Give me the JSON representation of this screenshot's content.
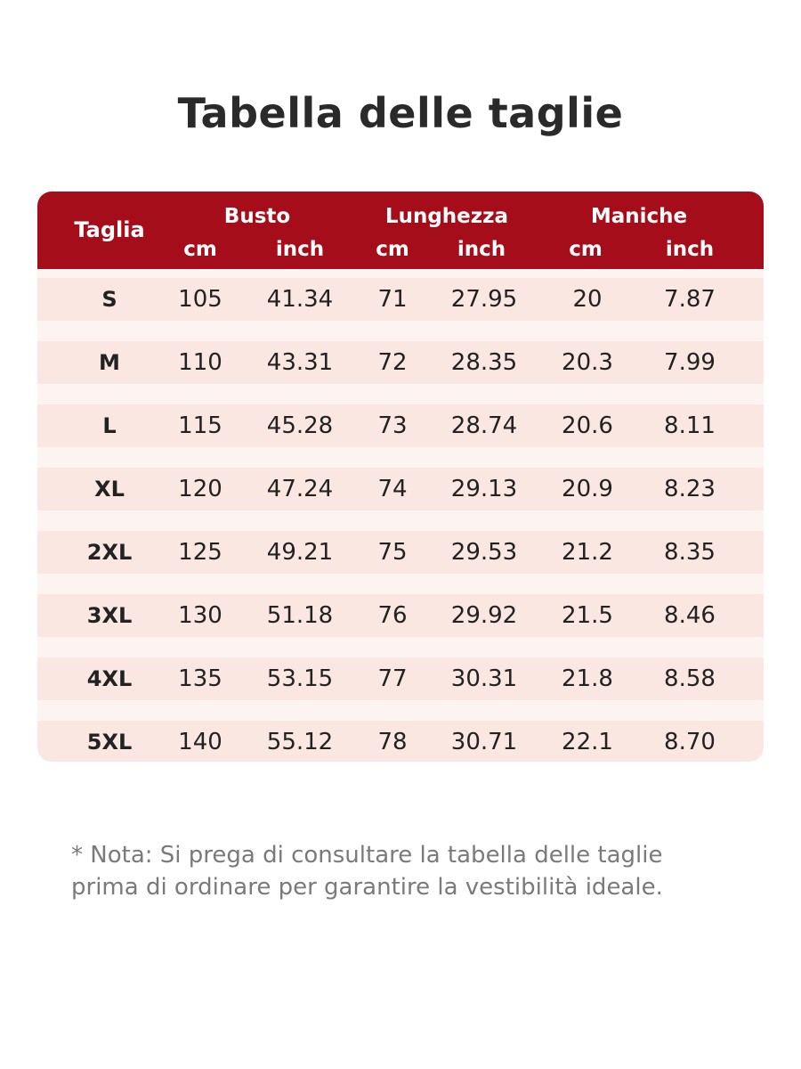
{
  "header": {
    "title": "Tabella delle taglie"
  },
  "table": {
    "size_label": "Taglia",
    "groups": [
      "Busto",
      "Lunghezza",
      "Maniche"
    ],
    "units": [
      "cm",
      "inch",
      "cm",
      "inch",
      "cm",
      "inch"
    ],
    "rows": [
      [
        "S",
        "105",
        "41.34",
        "71",
        "27.95",
        "20",
        "7.87"
      ],
      [
        "M",
        "110",
        "43.31",
        "72",
        "28.35",
        "20.3",
        "7.99"
      ],
      [
        "L",
        "115",
        "45.28",
        "73",
        "28.74",
        "20.6",
        "8.11"
      ],
      [
        "XL",
        "120",
        "47.24",
        "74",
        "29.13",
        "20.9",
        "8.23"
      ],
      [
        "2XL",
        "125",
        "49.21",
        "75",
        "29.53",
        "21.2",
        "8.35"
      ],
      [
        "3XL",
        "130",
        "51.18",
        "76",
        "29.92",
        "21.5",
        "8.46"
      ],
      [
        "4XL",
        "135",
        "53.15",
        "77",
        "30.31",
        "21.8",
        "8.58"
      ],
      [
        "5XL",
        "140",
        "55.12",
        "78",
        "30.71",
        "22.1",
        "8.70"
      ]
    ]
  },
  "note": [
    "* Nota: Si prega di consultare la tabella delle taglie",
    "prima di ordinare per garantire la vestibilità ideale."
  ]
}
